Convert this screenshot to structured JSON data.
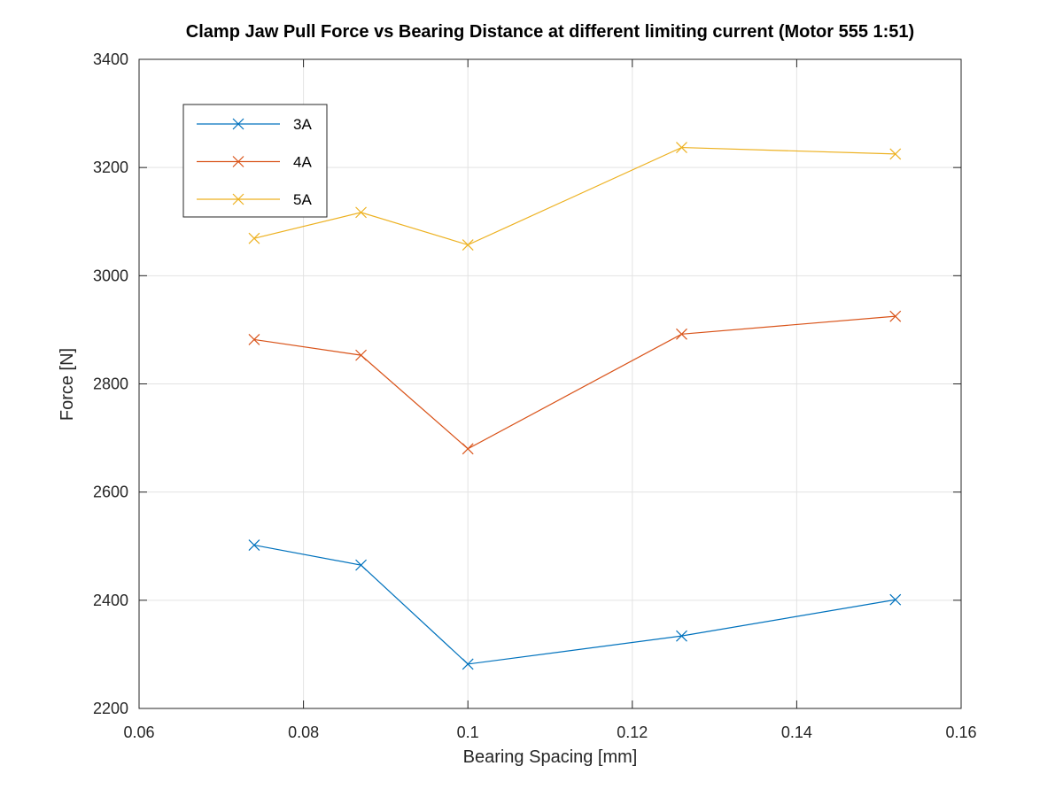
{
  "chart_data": {
    "type": "line",
    "title": "Clamp Jaw Pull Force vs Bearing Distance at different limiting current (Motor 555 1:51)",
    "xlabel": "Bearing Spacing [mm]",
    "ylabel": "Force [N]",
    "xlim": [
      0.06,
      0.16
    ],
    "ylim": [
      2200,
      3400
    ],
    "xticks": [
      0.06,
      0.08,
      0.1,
      0.12,
      0.14,
      0.16
    ],
    "xtick_labels": [
      "0.06",
      "0.08",
      "0.1",
      "0.12",
      "0.14",
      "0.16"
    ],
    "yticks": [
      2200,
      2400,
      2600,
      2800,
      3000,
      3200,
      3400
    ],
    "ytick_labels": [
      "2200",
      "2400",
      "2600",
      "2800",
      "3000",
      "3200",
      "3400"
    ],
    "grid": true,
    "legend_position": "top-left",
    "marker": "x",
    "x": [
      0.074,
      0.087,
      0.1,
      0.126,
      0.152
    ],
    "series": [
      {
        "name": "3A",
        "color": "#0072BD",
        "values": [
          2502,
          2465,
          2282,
          2334,
          2401
        ]
      },
      {
        "name": "4A",
        "color": "#D95319",
        "values": [
          2882,
          2853,
          2680,
          2892,
          2925
        ]
      },
      {
        "name": "5A",
        "color": "#EDB120",
        "values": [
          3069,
          3117,
          3057,
          3237,
          3225
        ]
      }
    ]
  }
}
